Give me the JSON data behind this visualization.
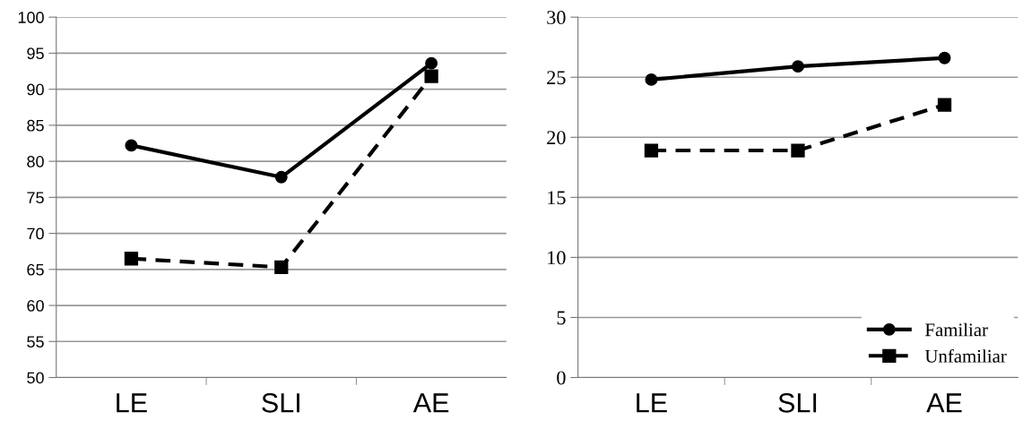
{
  "chart_data": [
    {
      "type": "line",
      "categories": [
        "LE",
        "SLI",
        "AE"
      ],
      "ylim": [
        50,
        100
      ],
      "yticks": [
        50,
        55,
        60,
        65,
        70,
        75,
        80,
        85,
        90,
        95,
        100
      ],
      "grid": "y",
      "legend": false,
      "series": [
        {
          "color": "#000000",
          "marker": "circle",
          "line_style": "solid",
          "values": [
            82.2,
            77.8,
            93.6
          ]
        },
        {
          "color": "#000000",
          "marker": "square",
          "line_style": "dashed",
          "values": [
            66.5,
            65.3,
            91.8
          ]
        }
      ]
    },
    {
      "type": "line",
      "categories": [
        "LE",
        "SLI",
        "AE"
      ],
      "ylim": [
        0,
        30
      ],
      "yticks": [
        0,
        5,
        10,
        15,
        20,
        25,
        30
      ],
      "grid": "y",
      "legend": "bottom right",
      "series": [
        {
          "name": "Familiar",
          "color": "#000000",
          "marker": "circle",
          "line_style": "solid",
          "values": [
            24.8,
            25.9,
            26.6
          ]
        },
        {
          "name": "Unfamiliar",
          "color": "#000000",
          "marker": "square",
          "line_style": "dashed",
          "values": [
            18.9,
            18.9,
            22.7
          ]
        }
      ]
    }
  ]
}
